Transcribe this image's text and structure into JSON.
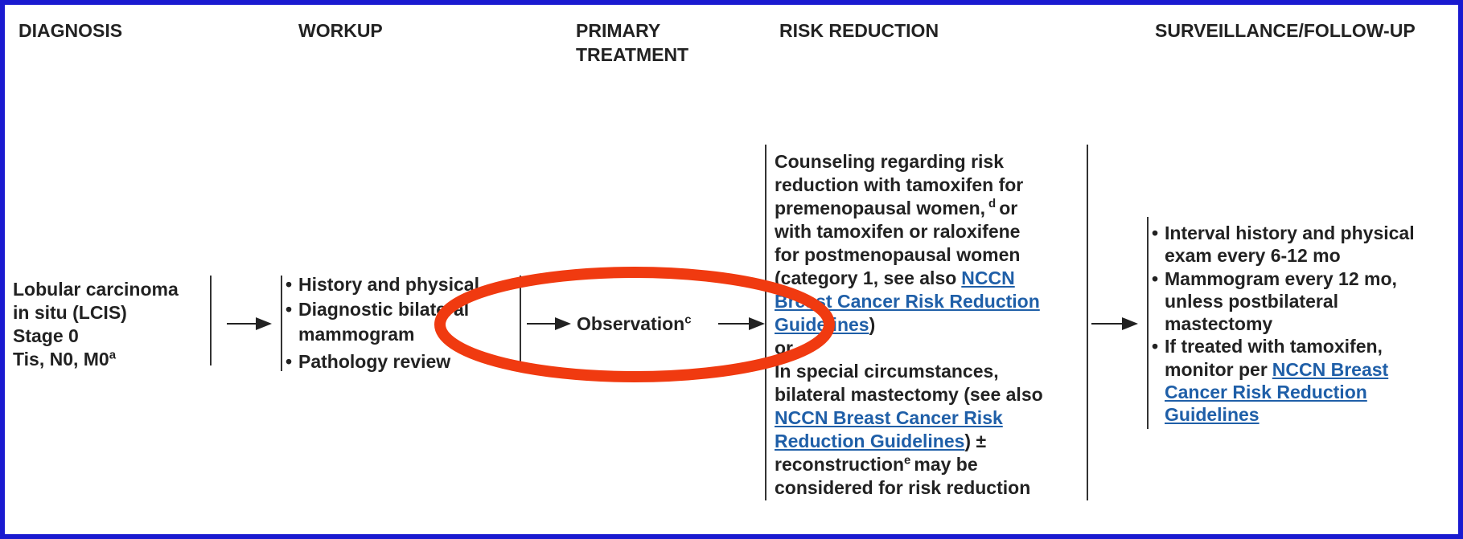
{
  "headers": {
    "diagnosis": "DIAGNOSIS",
    "workup": "WORKUP",
    "primary_treatment": [
      "PRIMARY",
      "TREATMENT"
    ],
    "risk_reduction": "RISK REDUCTION",
    "surveillance": "SURVEILLANCE/FOLLOW-UP"
  },
  "diagnosis": {
    "lines": [
      "Lobular carcinoma",
      "in situ (LCIS)",
      "Stage 0",
      "Tis, N0, M0"
    ],
    "footnote": "a"
  },
  "workup": {
    "lines": [
      "History and physical",
      "Diagnostic bilateral",
      "mammogram",
      "Pathology review"
    ]
  },
  "primary_treatment": {
    "text": "Observation",
    "footnote": "c"
  },
  "risk_reduction": {
    "lines": [
      [
        "Counseling regarding risk"
      ],
      [
        "reduction with tamoxifen for"
      ],
      [
        "premenopausal women,",
        "d",
        "or"
      ],
      [
        "with tamoxifen or raloxifene"
      ],
      [
        "for postmenopausal women"
      ],
      [
        "(category 1, see also",
        "NCCN"
      ],
      [
        "Breast Cancer Risk Reduction"
      ],
      [
        "Guidelines",
        ")"
      ],
      [
        "or"
      ],
      [
        "In special circumstances,"
      ],
      [
        "bilateral mastectomy (see also"
      ],
      [
        "NCCN Breast Cancer Risk"
      ],
      [
        "Reduction Guidelines",
        ") ±"
      ],
      [
        "reconstruction",
        "e",
        "may be"
      ],
      [
        "considered for risk reduction"
      ]
    ]
  },
  "surveillance": {
    "lines": [
      [
        "Interval history and physical"
      ],
      [
        "exam every 6-12 mo"
      ],
      [
        "Mammogram every 12 mo,"
      ],
      [
        "unless postbilateral"
      ],
      [
        "mastectomy"
      ],
      [
        "If treated with tamoxifen,"
      ],
      [
        "monitor per",
        "NCCN Breast"
      ],
      [
        "Cancer Risk Reduction"
      ],
      [
        "Guidelines"
      ]
    ]
  }
}
